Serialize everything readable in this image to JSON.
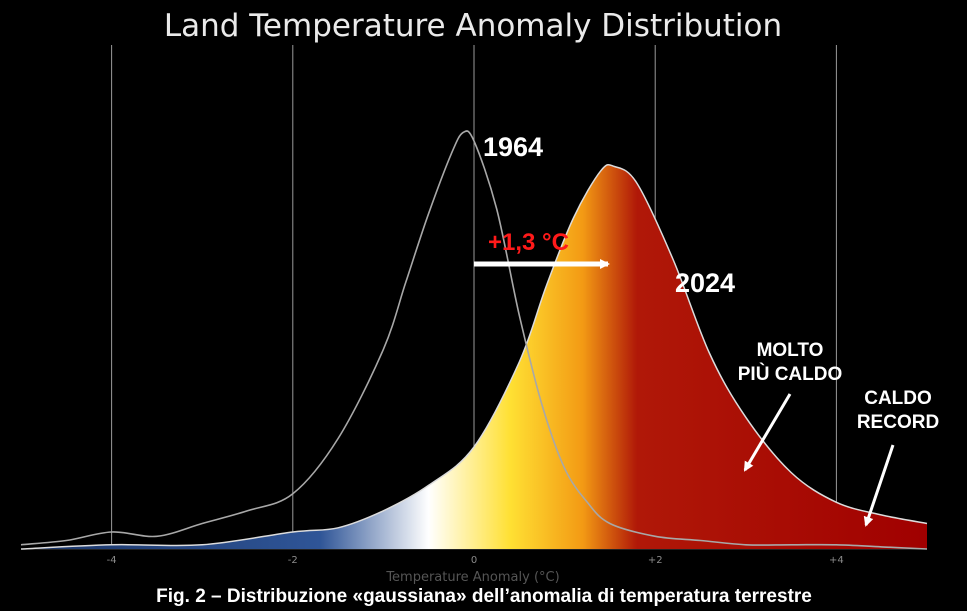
{
  "chart_data": {
    "type": "area",
    "title": "Land Temperature Anomaly Distribution",
    "xlabel": "Temperature Anomaly (°C)",
    "xlim": [
      -5,
      5
    ],
    "xticks": [
      -4,
      -2,
      0,
      2,
      4
    ],
    "xtick_labels": [
      "-4",
      "-2",
      "0",
      "+2",
      "+4"
    ],
    "grid": true,
    "series": [
      {
        "name": "1964",
        "x": [
          -5.0,
          -4.5,
          -4.0,
          -3.5,
          -3.0,
          -2.5,
          -2.0,
          -1.5,
          -1.0,
          -0.75,
          -0.5,
          -0.25,
          -0.12,
          0.0,
          0.25,
          0.5,
          0.75,
          1.0,
          1.25,
          1.5,
          2.0,
          2.5,
          3.0,
          3.5,
          4.0,
          4.5,
          5.0
        ],
        "y": [
          0.01,
          0.02,
          0.04,
          0.03,
          0.06,
          0.09,
          0.13,
          0.26,
          0.47,
          0.63,
          0.79,
          0.93,
          0.98,
          0.96,
          0.8,
          0.55,
          0.34,
          0.19,
          0.11,
          0.06,
          0.03,
          0.02,
          0.01,
          0.01,
          0.01,
          0.005,
          0.0
        ]
      },
      {
        "name": "2024",
        "x": [
          -5.0,
          -4.0,
          -3.0,
          -2.0,
          -1.5,
          -1.0,
          -0.5,
          0.0,
          0.5,
          0.8,
          1.1,
          1.4,
          1.55,
          1.8,
          2.2,
          2.6,
          3.0,
          3.5,
          4.0,
          4.5,
          5.0
        ],
        "y": [
          0.0,
          0.01,
          0.01,
          0.04,
          0.05,
          0.09,
          0.15,
          0.24,
          0.44,
          0.62,
          0.78,
          0.89,
          0.9,
          0.86,
          0.68,
          0.46,
          0.31,
          0.18,
          0.11,
          0.08,
          0.06
        ]
      }
    ],
    "annotations": {
      "shift_label": "+1,3 °C",
      "molto_line1": "MOLTO",
      "molto_line2": "PIÙ CALDO",
      "record_line1": "CALDO",
      "record_line2": "RECORD"
    },
    "colors": {
      "cold": "#2f5597",
      "neutral": "#ffffff",
      "warm": "#ffd21f",
      "hot": "#e8800c",
      "very_hot": "#a00000",
      "shift_label": "#ff1a1a"
    }
  },
  "caption": "Fig. 2 – Distribuzione «gaussiana» dell’anomalia di temperatura terrestre"
}
